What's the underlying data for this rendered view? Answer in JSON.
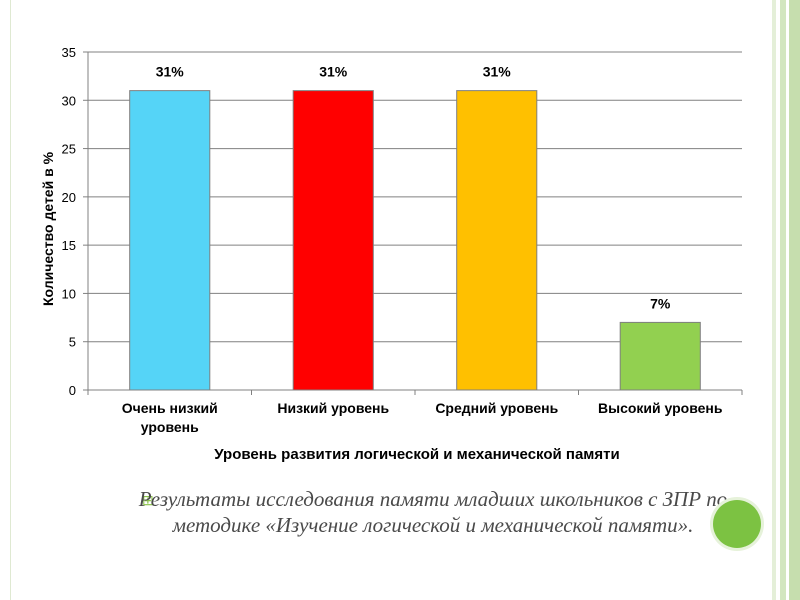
{
  "chart_data": {
    "type": "bar",
    "title": "",
    "categories": [
      [
        "Очень низкий",
        "уровень"
      ],
      [
        "Низкий уровень"
      ],
      [
        "Средний уровень"
      ],
      [
        "Высокий уровень"
      ]
    ],
    "values": [
      31,
      31,
      31,
      7
    ],
    "data_labels": [
      "31%",
      "31%",
      "31%",
      "7%"
    ],
    "colors": [
      "#55d4f7",
      "#ff0000",
      "#ffc000",
      "#92d050"
    ],
    "ylabel": "Количество детей в %",
    "xlabel": "Уровень развития логической и механической памяти",
    "ylim": [
      0,
      35
    ],
    "yticks": [
      0,
      5,
      10,
      15,
      20,
      25,
      30,
      35
    ],
    "grid": true
  },
  "caption": {
    "bullet": "⊞",
    "text": "Результаты исследования памяти младших школьников с ЗПР по методике «Изучение логической и механической памяти»."
  }
}
